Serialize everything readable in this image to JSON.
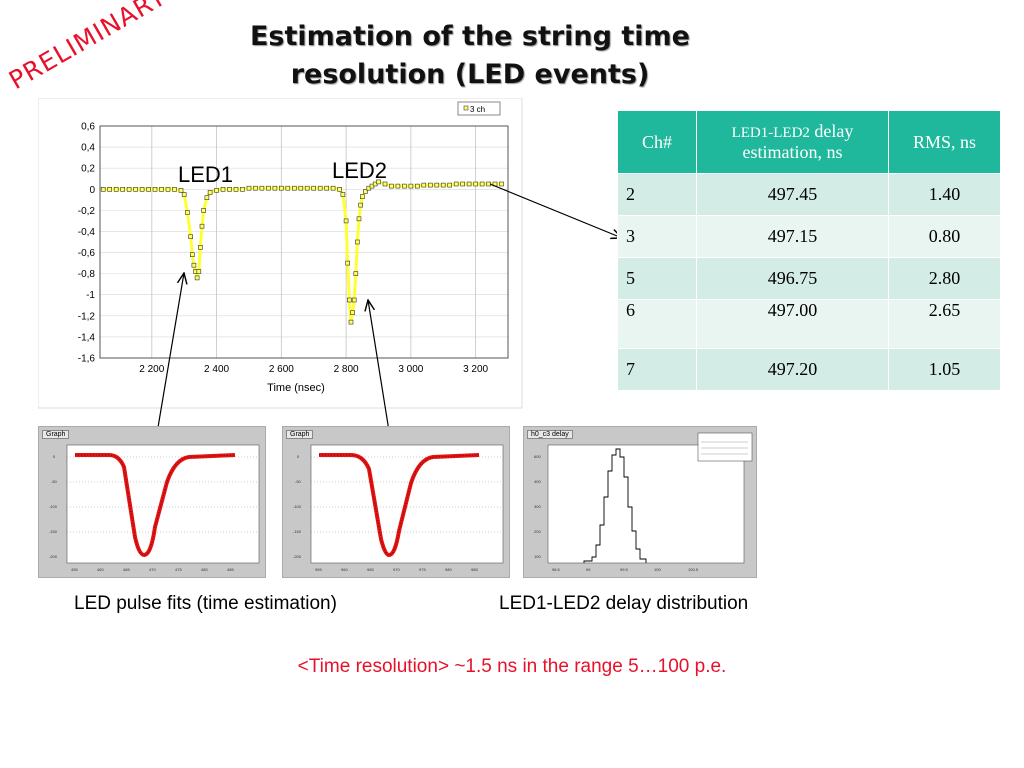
{
  "title_line1": "Estimation of the string time",
  "title_line2": "resolution (LED events)",
  "watermark": "PRELIMINARY",
  "main_chart": {
    "legend": "3 ch",
    "xlabel": "Time (nsec)",
    "led1_label": "LED1",
    "led2_label": "LED2",
    "yticks": [
      "0,6",
      "0,4",
      "0,2",
      "0",
      "-0,2",
      "-0,4",
      "-0,6",
      "-0,8",
      "-1",
      "-1,2",
      "-1,4",
      "-1,6"
    ],
    "xticks": [
      "2 200",
      "2 400",
      "2 600",
      "2 800",
      "3 000",
      "3 200"
    ]
  },
  "chart_data": {
    "type": "scatter",
    "title": "",
    "xlabel": "Time (nsec)",
    "ylabel": "",
    "xlim": [
      2040,
      3300
    ],
    "ylim": [
      -1.6,
      0.6
    ],
    "series": [
      {
        "name": "3 ch",
        "x": [
          2050,
          2070,
          2090,
          2110,
          2130,
          2150,
          2170,
          2190,
          2210,
          2230,
          2250,
          2270,
          2290,
          2300,
          2310,
          2320,
          2325,
          2330,
          2335,
          2340,
          2345,
          2350,
          2355,
          2360,
          2370,
          2380,
          2400,
          2420,
          2440,
          2460,
          2480,
          2500,
          2520,
          2540,
          2560,
          2580,
          2600,
          2620,
          2640,
          2660,
          2680,
          2700,
          2720,
          2740,
          2760,
          2780,
          2790,
          2800,
          2805,
          2810,
          2815,
          2820,
          2825,
          2830,
          2835,
          2840,
          2845,
          2850,
          2860,
          2870,
          2880,
          2890,
          2900,
          2920,
          2940,
          2960,
          2980,
          3000,
          3020,
          3040,
          3060,
          3080,
          3100,
          3120,
          3140,
          3160,
          3180,
          3200,
          3220,
          3240,
          3260,
          3280
        ],
        "y": [
          0.0,
          0.0,
          0.0,
          0.0,
          0.0,
          0.0,
          0.0,
          0.0,
          0.0,
          0.0,
          0.0,
          0.0,
          -0.01,
          -0.05,
          -0.22,
          -0.45,
          -0.62,
          -0.72,
          -0.78,
          -0.84,
          -0.78,
          -0.55,
          -0.35,
          -0.2,
          -0.08,
          -0.03,
          -0.01,
          0.0,
          0.0,
          0.0,
          0.0,
          0.01,
          0.01,
          0.01,
          0.01,
          0.01,
          0.01,
          0.01,
          0.01,
          0.01,
          0.01,
          0.01,
          0.01,
          0.01,
          0.01,
          0.0,
          -0.05,
          -0.3,
          -0.7,
          -1.05,
          -1.26,
          -1.17,
          -1.05,
          -0.8,
          -0.5,
          -0.28,
          -0.15,
          -0.07,
          -0.02,
          0.01,
          0.03,
          0.05,
          0.07,
          0.05,
          0.03,
          0.03,
          0.03,
          0.03,
          0.03,
          0.04,
          0.04,
          0.04,
          0.04,
          0.04,
          0.05,
          0.05,
          0.05,
          0.05,
          0.05,
          0.05,
          0.05,
          0.05
        ]
      }
    ]
  },
  "table": {
    "headers": [
      "Ch#",
      "LED1-LED2 delay estimation, ns",
      "RMS, ns"
    ],
    "header_delay_part1": "LED1-LED2",
    "header_delay_part2": " delay",
    "header_delay_part3": "estimation, ns",
    "rows": [
      {
        "ch": "2",
        "delay": "497.45",
        "rms": "1.40"
      },
      {
        "ch": "3",
        "delay": "497.15",
        "rms": "0.80"
      },
      {
        "ch": "5",
        "delay": "496.75",
        "rms": "2.80"
      },
      {
        "ch": "6",
        "delay": "497.00",
        "rms": "2.65"
      },
      {
        "ch": "7",
        "delay": "497.20",
        "rms": "1.05"
      }
    ]
  },
  "panels": {
    "p1_tag": "Graph",
    "p2_tag": "Graph",
    "p3_tag": "h0_c3 delay"
  },
  "caption_fits": "LED pulse fits (time estimation)",
  "caption_delay": "LED1-LED2 delay distribution",
  "conclusion": "<Time resolution> ~1.5 ns in the range 5…100 p.e.",
  "colors": {
    "accent_red": "#e8102a",
    "table_header": "#1fb89d",
    "table_row_odd": "#d3ece5",
    "table_row_even": "#e8f5f1",
    "marker_fill": "#ffff66"
  }
}
